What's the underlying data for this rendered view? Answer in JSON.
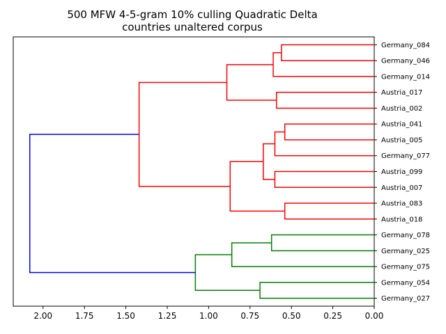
{
  "chart_data": {
    "type": "dendrogram",
    "title": "500 MFW 4-5-gram 10% culling Quadratic Delta",
    "subtitle": "countries unaltered corpus",
    "xlim": [
      2.18,
      0.0
    ],
    "x_ticks": [
      2.0,
      1.75,
      1.5,
      1.25,
      1.0,
      0.75,
      0.5,
      0.25,
      0.0
    ],
    "x_tick_labels": [
      "2.00",
      "1.75",
      "1.50",
      "1.25",
      "1.00",
      "0.75",
      "0.50",
      "0.25",
      "0.00"
    ],
    "leaves": [
      "Germany_084",
      "Germany_046",
      "Germany_014",
      "Austria_017",
      "Austria_002",
      "Austria_041",
      "Austria_005",
      "Germany_077",
      "Austria_099",
      "Austria_007",
      "Austria_083",
      "Austria_018",
      "Germany_078",
      "Germany_025",
      "Germany_075",
      "Germany_054",
      "Germany_027"
    ],
    "merges": [
      {
        "a": "L0",
        "b": "L1",
        "height": 0.56,
        "color": "#ff0000"
      },
      {
        "a": "M0",
        "b": "L2",
        "height": 0.61,
        "color": "#ff0000"
      },
      {
        "a": "L3",
        "b": "L4",
        "height": 0.59,
        "color": "#ff0000"
      },
      {
        "a": "M1",
        "b": "M2",
        "height": 0.89,
        "color": "#ff0000"
      },
      {
        "a": "L5",
        "b": "L6",
        "height": 0.54,
        "color": "#ff0000"
      },
      {
        "a": "M4",
        "b": "L7",
        "height": 0.6,
        "color": "#ff0000"
      },
      {
        "a": "L8",
        "b": "L9",
        "height": 0.6,
        "color": "#ff0000"
      },
      {
        "a": "M5",
        "b": "M6",
        "height": 0.67,
        "color": "#ff0000"
      },
      {
        "a": "L10",
        "b": "L11",
        "height": 0.54,
        "color": "#ff0000"
      },
      {
        "a": "M7",
        "b": "M8",
        "height": 0.87,
        "color": "#ff0000"
      },
      {
        "a": "M3",
        "b": "M9",
        "height": 1.42,
        "color": "#ff0000"
      },
      {
        "a": "L12",
        "b": "L13",
        "height": 0.62,
        "color": "#008000"
      },
      {
        "a": "M11",
        "b": "L14",
        "height": 0.86,
        "color": "#008000"
      },
      {
        "a": "L15",
        "b": "L16",
        "height": 0.69,
        "color": "#008000"
      },
      {
        "a": "M12",
        "b": "M13",
        "height": 1.08,
        "color": "#008000"
      },
      {
        "a": "M10",
        "b": "M14",
        "height": 2.08,
        "color": "#0000ff"
      }
    ],
    "grid": false,
    "legend": "none"
  }
}
